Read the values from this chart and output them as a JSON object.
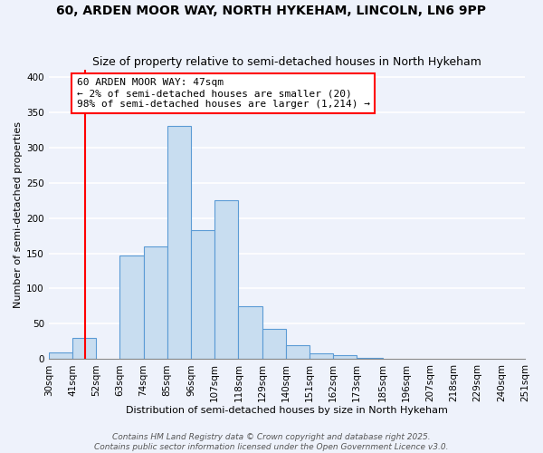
{
  "title": "60, ARDEN MOOR WAY, NORTH HYKEHAM, LINCOLN, LN6 9PP",
  "subtitle": "Size of property relative to semi-detached houses in North Hykeham",
  "xlabel": "Distribution of semi-detached houses by size in North Hykeham",
  "ylabel": "Number of semi-detached properties",
  "bar_values": [
    10,
    30,
    0,
    147,
    160,
    330,
    183,
    225,
    75,
    43,
    20,
    8,
    5,
    2,
    1,
    0,
    0,
    0,
    0,
    0
  ],
  "bin_edges": [
    30,
    41,
    52,
    63,
    74,
    85,
    96,
    107,
    118,
    129,
    140,
    151,
    162,
    173,
    185,
    196,
    207,
    218,
    229,
    240,
    251
  ],
  "bin_labels": [
    "30sqm",
    "41sqm",
    "52sqm",
    "63sqm",
    "74sqm",
    "85sqm",
    "96sqm",
    "107sqm",
    "118sqm",
    "129sqm",
    "140sqm",
    "151sqm",
    "162sqm",
    "173sqm",
    "185sqm",
    "196sqm",
    "207sqm",
    "218sqm",
    "229sqm",
    "240sqm",
    "251sqm"
  ],
  "bar_color": "#c8ddf0",
  "bar_edge_color": "#5b9bd5",
  "red_line_x": 47,
  "ylim": [
    0,
    410
  ],
  "yticks": [
    0,
    50,
    100,
    150,
    200,
    250,
    300,
    350,
    400
  ],
  "annotation_title": "60 ARDEN MOOR WAY: 47sqm",
  "annotation_line1": "← 2% of semi-detached houses are smaller (20)",
  "annotation_line2": "98% of semi-detached houses are larger (1,214) →",
  "footer1": "Contains HM Land Registry data © Crown copyright and database right 2025.",
  "footer2": "Contains public sector information licensed under the Open Government Licence v3.0.",
  "background_color": "#eef2fb",
  "grid_color": "#ffffff",
  "title_fontsize": 10,
  "subtitle_fontsize": 9,
  "axis_label_fontsize": 8,
  "tick_fontsize": 7.5,
  "annotation_fontsize": 8,
  "footer_fontsize": 6.5
}
